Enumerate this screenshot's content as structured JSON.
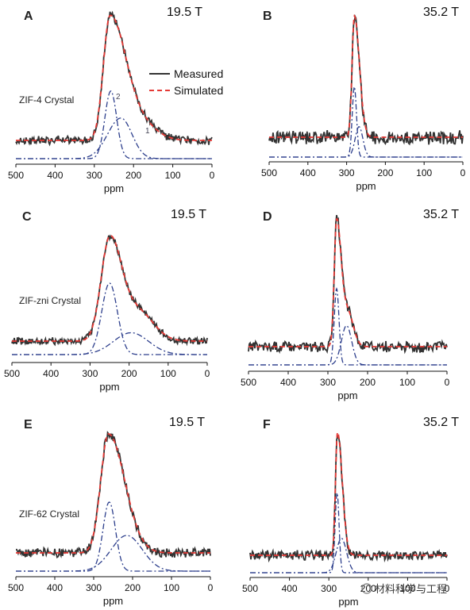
{
  "chart_data": [
    {
      "panel": "A",
      "field": "19.5 T",
      "sample": "ZIF-4 Crystal",
      "type": "line",
      "xlabel": "ppm",
      "xlim": [
        500,
        0
      ],
      "xticks": [
        500,
        400,
        300,
        200,
        100,
        0
      ],
      "legend": [
        "Measured",
        "Simulated"
      ],
      "legend_position": "top-right",
      "peak_labels": [
        {
          "text": "2",
          "x": 245
        },
        {
          "text": "1",
          "x": 170
        }
      ],
      "spectrum": {
        "x0": 260,
        "height": 1.0,
        "wl": 17,
        "wr": 40,
        "shoulder": {
          "x0": 180,
          "height": 0.12,
          "w": 40
        },
        "noise": 0.03
      },
      "components": [
        {
          "x0": 258,
          "height": 0.55,
          "w": 15
        },
        {
          "x0": 232,
          "height": 0.33,
          "w": 34,
          "tail_right": 28
        }
      ]
    },
    {
      "panel": "B",
      "field": "35.2 T",
      "sample": "",
      "type": "line",
      "xlabel": "ppm",
      "xlim": [
        500,
        0
      ],
      "xticks": [
        500,
        400,
        300,
        200,
        100,
        0
      ],
      "spectrum": {
        "x0": 280,
        "height": 1.0,
        "wl": 6,
        "wr": 13,
        "noise": 0.05
      },
      "components": [
        {
          "x0": 280,
          "height": 0.58,
          "w": 5.5
        },
        {
          "x0": 268,
          "height": 0.25,
          "w": 10
        }
      ]
    },
    {
      "panel": "C",
      "field": "19.5 T",
      "sample": "ZIF-zni Crystal",
      "type": "line",
      "xlabel": "ppm",
      "xlim": [
        500,
        0
      ],
      "xticks": [
        500,
        400,
        300,
        200,
        100,
        0
      ],
      "spectrum": {
        "x0": 250,
        "height": 1.0,
        "wl": 22,
        "wr": 30,
        "shoulder": {
          "x0": 178,
          "height": 0.3,
          "w": 40
        },
        "noise": 0.03
      },
      "components": [
        {
          "x0": 250,
          "height": 0.72,
          "w": 20
        },
        {
          "x0": 195,
          "height": 0.22,
          "w": 45
        }
      ]
    },
    {
      "panel": "D",
      "field": "35.2 T",
      "sample": "",
      "type": "line",
      "xlabel": "ppm",
      "xlim": [
        500,
        0
      ],
      "xticks": [
        500,
        400,
        300,
        200,
        100,
        0
      ],
      "spectrum": {
        "x0": 278,
        "height": 1.0,
        "wl": 6,
        "wr": 11,
        "shoulder": {
          "x0": 250,
          "height": 0.28,
          "w": 14
        },
        "noise": 0.04
      },
      "components": [
        {
          "x0": 278,
          "height": 0.62,
          "w": 6
        },
        {
          "x0": 253,
          "height": 0.32,
          "w": 13
        }
      ]
    },
    {
      "panel": "E",
      "field": "19.5 T",
      "sample": "ZIF-62 Crystal",
      "type": "line",
      "xlabel": "ppm",
      "xlim": [
        500,
        0
      ],
      "xticks": [
        500,
        400,
        300,
        200,
        100,
        0
      ],
      "spectrum": {
        "x0": 262,
        "height": 1.0,
        "wl": 20,
        "wr": 42,
        "noise": 0.035
      },
      "components": [
        {
          "x0": 260,
          "height": 0.58,
          "w": 16
        },
        {
          "x0": 215,
          "height": 0.3,
          "w": 40
        }
      ]
    },
    {
      "panel": "F",
      "field": "35.2 T",
      "sample": "",
      "type": "line",
      "xlabel": "ppm",
      "xlim": [
        500,
        0
      ],
      "xticks": [
        500,
        400,
        300,
        200,
        100,
        0
      ],
      "spectrum": {
        "x0": 278,
        "height": 1.0,
        "wl": 5,
        "wr": 12,
        "noise": 0.035
      },
      "components": [
        {
          "x0": 279,
          "height": 0.65,
          "w": 5
        },
        {
          "x0": 268,
          "height": 0.28,
          "w": 13
        }
      ]
    }
  ],
  "series_colors": {
    "measured": "#333333",
    "simulated": "#e53935",
    "components": "#2c3e8c"
  },
  "watermark": "材料科学与工程"
}
